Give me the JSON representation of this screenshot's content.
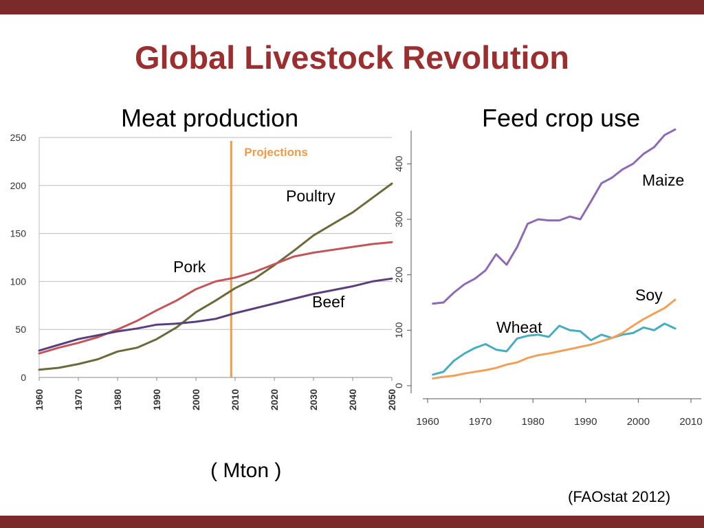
{
  "slide": {
    "title": "Global Livestock Revolution",
    "left_subtitle": "Meat production",
    "right_subtitle": "Feed crop use",
    "unit": "( Mton )",
    "source": "(FAOstat 2012)"
  },
  "colors": {
    "band": "#7b2a2a",
    "title": "#9b2f2f",
    "poultry": "#6b6a3a",
    "pork": "#c2555a",
    "beef": "#5a3f7c",
    "projection": "#f09a4a",
    "maize": "#8e6ab4",
    "wheat": "#45adc0",
    "soy": "#f2a055"
  },
  "chart_data": [
    {
      "type": "line",
      "title": "",
      "xlabel": "",
      "ylabel": "",
      "xlim": [
        1960,
        2050
      ],
      "ylim": [
        0,
        250
      ],
      "x_ticks": [
        1960,
        1970,
        1980,
        1990,
        2000,
        2010,
        2020,
        2030,
        2040,
        2050
      ],
      "y_ticks": [
        0,
        50,
        100,
        150,
        200,
        250
      ],
      "grid": "horizontal",
      "annotation": {
        "label": "Projections",
        "x": 2009
      },
      "x": [
        1960,
        1965,
        1970,
        1975,
        1980,
        1985,
        1990,
        1995,
        2000,
        2005,
        2010,
        2015,
        2020,
        2025,
        2030,
        2035,
        2040,
        2045,
        2050
      ],
      "series": [
        {
          "name": "Poultry",
          "color_key": "poultry",
          "values": [
            8,
            10,
            14,
            19,
            27,
            31,
            40,
            52,
            68,
            80,
            93,
            103,
            117,
            132,
            148,
            160,
            172,
            187,
            202
          ]
        },
        {
          "name": "Pork",
          "color_key": "pork",
          "values": [
            25,
            31,
            36,
            42,
            50,
            59,
            70,
            80,
            92,
            100,
            104,
            110,
            118,
            126,
            130,
            133,
            136,
            139,
            141
          ]
        },
        {
          "name": "Beef",
          "color_key": "beef",
          "values": [
            28,
            34,
            40,
            44,
            48,
            51,
            55,
            56,
            58,
            61,
            67,
            72,
            77,
            82,
            87,
            91,
            95,
            100,
            103
          ]
        }
      ]
    },
    {
      "type": "line",
      "title": "",
      "xlabel": "",
      "ylabel": "",
      "xlim": [
        1960,
        2010
      ],
      "ylim": [
        0,
        450
      ],
      "x_ticks": [
        1960,
        1970,
        1980,
        1990,
        2000,
        2010
      ],
      "y_ticks": [
        0,
        100,
        200,
        300,
        400
      ],
      "grid": "none",
      "x": [
        1961,
        1963,
        1965,
        1967,
        1969,
        1971,
        1973,
        1975,
        1977,
        1979,
        1981,
        1983,
        1985,
        1987,
        1989,
        1991,
        1993,
        1995,
        1997,
        1999,
        2001,
        2003,
        2005,
        2007
      ],
      "series": [
        {
          "name": "Maize",
          "color_key": "maize",
          "values": [
            148,
            150,
            168,
            183,
            193,
            208,
            237,
            218,
            250,
            292,
            300,
            298,
            298,
            305,
            300,
            332,
            365,
            375,
            390,
            400,
            418,
            430,
            452,
            462
          ]
        },
        {
          "name": "Wheat",
          "color_key": "wheat",
          "values": [
            20,
            25,
            45,
            58,
            68,
            75,
            65,
            62,
            85,
            90,
            92,
            88,
            108,
            100,
            98,
            82,
            92,
            86,
            92,
            95,
            105,
            100,
            112,
            103
          ]
        },
        {
          "name": "Soy",
          "color_key": "soy",
          "values": [
            13,
            16,
            18,
            22,
            25,
            28,
            32,
            38,
            42,
            50,
            55,
            58,
            62,
            66,
            70,
            74,
            80,
            86,
            95,
            108,
            120,
            130,
            140,
            155
          ]
        }
      ]
    }
  ]
}
